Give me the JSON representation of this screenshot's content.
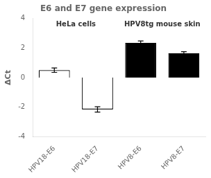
{
  "chart_data": {
    "type": "bar",
    "title": "E6 and E7 gene expression",
    "ylabel": "ΔCt",
    "categories": [
      "HPV18-E6",
      "HPV18-E7",
      "HPV8-E6",
      "HPV8-E7"
    ],
    "values": [
      0.5,
      -2.15,
      2.35,
      1.65
    ],
    "errors": [
      0.15,
      0.18,
      0.12,
      0.1
    ],
    "colors": [
      "white",
      "white",
      "black",
      "black"
    ],
    "annotations": [
      "HeLa cells",
      "HPV8tg mouse skin"
    ],
    "ylim": [
      -4,
      4
    ],
    "yticks": [
      -4,
      -2,
      0,
      2,
      4
    ],
    "grid": false
  }
}
